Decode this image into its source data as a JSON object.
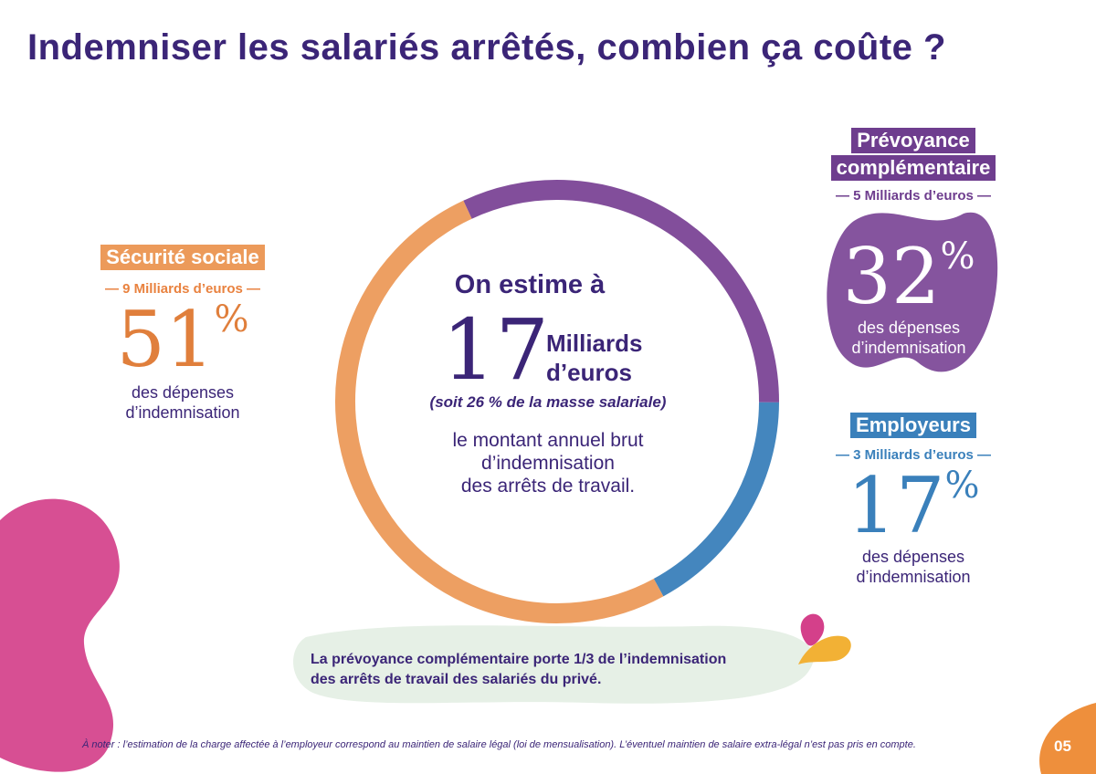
{
  "title": "Indemniser les salariés arrêtés, combien ça coûte ?",
  "center": {
    "lead": "On estime à",
    "big_number": "17",
    "unit_line1": "Milliards",
    "unit_line2": "d’euros",
    "note": "(soit 26 % de la masse salariale)",
    "line1": "le montant annuel brut",
    "line2": "d’indemnisation",
    "line3": "des arrêts de travail."
  },
  "blocks": {
    "securite": {
      "label": "Sécurité sociale",
      "amount": "— 9 Milliards d’euros —",
      "percent": "51",
      "percent_sign": "%",
      "desc_line1": "des dépenses",
      "desc_line2": "d’indemnisation"
    },
    "prevoyance": {
      "label_line1": "Prévoyance",
      "label_line2": "complémentaire",
      "amount": "— 5 Milliards d’euros —",
      "percent": "32",
      "percent_sign": "%",
      "desc_line1": "des dépenses",
      "desc_line2": "d’indemnisation"
    },
    "employeurs": {
      "label": "Employeurs",
      "amount": "— 3 Milliards d’euros —",
      "percent": "17",
      "percent_sign": "%",
      "desc_line1": "des dépenses",
      "desc_line2": "d’indemnisation"
    }
  },
  "callout": {
    "line1": "La prévoyance complémentaire porte 1/3 de l’indemnisation",
    "line2": "des arrêts de travail des salariés du privé."
  },
  "footnote": "À noter : l’estimation de la charge affectée à l’employeur correspond au maintien de salaire légal (loi de mensualisation). L’éventuel maintien de salaire extra-légal n’est pas pris en compte.",
  "page_number": "05",
  "colors": {
    "title": "#3b2577",
    "securite": "#e98a45",
    "prevoyance": "#7b3f98",
    "employeurs": "#3a7fba",
    "callout_bg": "#e6f0e6",
    "pink_blob": "#d4408a"
  },
  "chart_data": {
    "type": "pie",
    "categories": [
      "Sécurité sociale",
      "Prévoyance complémentaire",
      "Employeurs"
    ],
    "values": [
      51,
      32,
      17
    ],
    "amounts_billion_eur": [
      9,
      5,
      3
    ],
    "total_billion_eur": 17,
    "colors": [
      "#ec9a5a",
      "#7b4596",
      "#3a80bb"
    ]
  }
}
